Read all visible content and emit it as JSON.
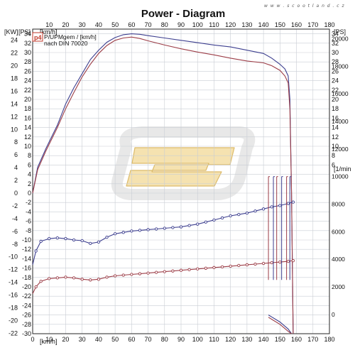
{
  "watermark_url": "w w w . s c o o t l a n d . c z",
  "chart_data": {
    "type": "line",
    "title": "Power - Diagram",
    "legend": {
      "badge": "p4",
      "line1": "P/UPMgem / [km/h]",
      "line2": "nach DIN 70020"
    },
    "units": {
      "left_kw": "[KW]",
      "left_ps": "[PS]",
      "top_x": "[km/h]",
      "bottom_x": "[km/h]",
      "right_ps": "[PS]",
      "right_rpm": "[1/min"
    },
    "x_ticks": [
      0,
      10,
      20,
      30,
      40,
      50,
      60,
      70,
      80,
      90,
      100,
      110,
      120,
      130,
      140,
      150,
      160,
      170,
      180
    ],
    "xlim": [
      0,
      180
    ],
    "kw_ticks": [
      24,
      22,
      20,
      18,
      16,
      14,
      12,
      10,
      8,
      6,
      4,
      2,
      0,
      -2,
      -4,
      -6,
      -8,
      -10,
      -12,
      -14,
      -16,
      -18,
      -20,
      -22
    ],
    "ps_ticks": [
      34,
      32,
      30,
      28,
      26,
      24,
      22,
      20,
      18,
      16,
      14,
      12,
      10,
      8,
      6,
      4,
      2,
      0,
      -2,
      -4,
      -6,
      -8,
      -10,
      -12,
      -14,
      -16,
      -18,
      -20,
      -22,
      -24,
      -26,
      -28,
      -30
    ],
    "ps_lim": [
      -30,
      35
    ],
    "rpm_ticks": [
      20000,
      18000,
      16000,
      14000,
      12000,
      10000,
      8000,
      6000,
      4000,
      2000,
      0
    ],
    "rpm_lim": [
      -1400,
      20700
    ],
    "series": [
      {
        "role": "power",
        "color": "#3d3f8f",
        "x": [
          0,
          3,
          8,
          15,
          20,
          25,
          30,
          35,
          40,
          45,
          50,
          55,
          60,
          65,
          70,
          80,
          90,
          100,
          110,
          120,
          130,
          140,
          145,
          150,
          153,
          155,
          156,
          157,
          158
        ],
        "y": [
          0,
          5.5,
          9.5,
          14.5,
          19,
          22.5,
          25.5,
          28.5,
          30.5,
          32.2,
          33.2,
          33.8,
          34,
          33.9,
          33.6,
          33.1,
          32.6,
          32.1,
          31.6,
          31.2,
          30.5,
          29.8,
          28.8,
          27.5,
          26.5,
          25,
          20,
          0,
          -30
        ]
      },
      {
        "role": "power",
        "color": "#9c3d47",
        "x": [
          0,
          3,
          8,
          15,
          20,
          25,
          30,
          35,
          40,
          45,
          50,
          55,
          60,
          65,
          70,
          80,
          90,
          100,
          110,
          120,
          130,
          140,
          145,
          150,
          153,
          155,
          156,
          157,
          158
        ],
        "y": [
          0,
          5,
          9,
          14,
          18,
          21.5,
          24.8,
          27.5,
          29.8,
          31.5,
          32.6,
          33.1,
          33.3,
          33,
          32.5,
          31.6,
          30.8,
          30.1,
          29.5,
          28.8,
          28.2,
          27.8,
          27.2,
          26.2,
          25,
          23.5,
          18,
          0,
          -30
        ]
      },
      {
        "role": "rpm",
        "color": "#3d3f8f",
        "x": [
          0,
          2,
          5,
          10,
          15,
          20,
          25,
          30,
          35,
          40,
          45,
          50,
          55,
          60,
          65,
          70,
          75,
          80,
          85,
          90,
          95,
          100,
          105,
          110,
          115,
          120,
          125,
          130,
          135,
          140,
          145,
          150,
          155,
          158
        ],
        "y": [
          3600,
          4600,
          5300,
          5500,
          5550,
          5500,
          5400,
          5350,
          5150,
          5250,
          5600,
          5850,
          5950,
          6050,
          6100,
          6150,
          6200,
          6250,
          6300,
          6350,
          6450,
          6550,
          6700,
          6850,
          7000,
          7150,
          7250,
          7350,
          7500,
          7650,
          7800,
          7900,
          8050,
          8150
        ]
      },
      {
        "role": "rpm",
        "color": "#9c3d47",
        "x": [
          0,
          2,
          5,
          10,
          15,
          20,
          25,
          30,
          35,
          40,
          45,
          50,
          55,
          60,
          65,
          70,
          75,
          80,
          85,
          90,
          95,
          100,
          105,
          110,
          115,
          120,
          125,
          130,
          135,
          140,
          145,
          150,
          155,
          158
        ],
        "y": [
          1500,
          2000,
          2400,
          2600,
          2650,
          2700,
          2650,
          2550,
          2500,
          2550,
          2700,
          2800,
          2850,
          2900,
          2950,
          3000,
          3050,
          3100,
          3150,
          3200,
          3250,
          3300,
          3350,
          3400,
          3450,
          3500,
          3550,
          3600,
          3650,
          3700,
          3750,
          3800,
          3850,
          3900
        ]
      }
    ],
    "shift_spikes": [
      {
        "color": "#9c3d47",
        "x": [
          143,
          148,
          154
        ]
      },
      {
        "color": "#3d3f8f",
        "x": [
          146,
          151,
          156
        ]
      }
    ],
    "coastdown": [
      {
        "color": "#3d3f8f",
        "x": [
          143,
          150,
          155,
          157
        ],
        "y": [
          -26,
          -27.5,
          -29,
          -30
        ]
      },
      {
        "color": "#9c3d47",
        "x": [
          143,
          150,
          155,
          157
        ],
        "y": [
          -26.5,
          -28,
          -29.5,
          -30
        ]
      }
    ]
  }
}
